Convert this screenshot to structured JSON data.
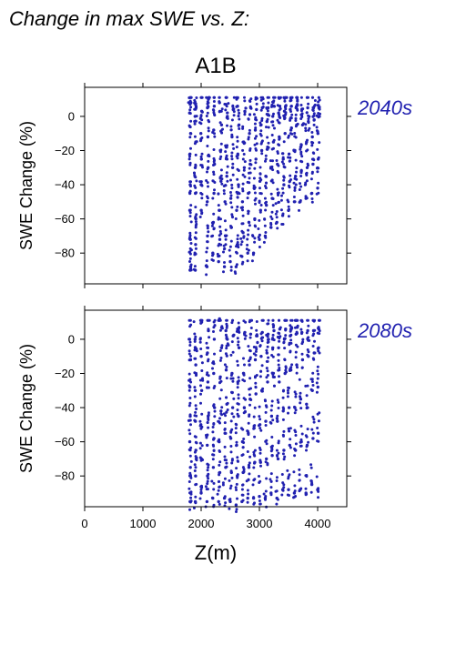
{
  "figure": {
    "title": "Change in max SWE vs. Z:",
    "scenario": "A1B",
    "xlabel": "Z(m)"
  },
  "chart_data": [
    {
      "type": "scatter",
      "panel_label": "2040s",
      "ylabel": "SWE Change (%)",
      "xlabel": "",
      "xlim": [
        0,
        4500
      ],
      "ylim": [
        -98,
        17
      ],
      "xticks": [
        0,
        1000,
        2000,
        3000,
        4000
      ],
      "yticks": [
        0,
        -20,
        -40,
        -60,
        -80
      ],
      "show_xtick_labels": false,
      "color": "#2121b0",
      "x_range_of_points": [
        1800,
        4020
      ],
      "y_envelope_note": "points span roughly -90 to +10 percent; lower bound rises from about -90 at 2700 m to about -40 near 4000 m",
      "points": [
        [
          1810,
          -90
        ],
        [
          1820,
          -88
        ],
        [
          1815,
          -72
        ],
        [
          1805,
          -55
        ],
        [
          1812,
          -40
        ],
        [
          1808,
          -22
        ],
        [
          1818,
          -10
        ],
        [
          1802,
          2
        ],
        [
          1825,
          8
        ],
        [
          1900,
          -90
        ],
        [
          1905,
          -75
        ],
        [
          1910,
          -60
        ],
        [
          1902,
          -45
        ],
        [
          1898,
          -30
        ],
        [
          1908,
          -15
        ],
        [
          1895,
          0
        ],
        [
          1912,
          5
        ],
        [
          2000,
          -40
        ],
        [
          2005,
          -25
        ],
        [
          1995,
          -10
        ],
        [
          2010,
          3
        ],
        [
          2002,
          -55
        ],
        [
          2100,
          -88
        ],
        [
          2110,
          -70
        ],
        [
          2105,
          -50
        ],
        [
          2120,
          -30
        ],
        [
          2115,
          -12
        ],
        [
          2108,
          5
        ],
        [
          2125,
          10
        ],
        [
          2200,
          -80
        ],
        [
          2210,
          -62
        ],
        [
          2220,
          -45
        ],
        [
          2230,
          -28
        ],
        [
          2215,
          -8
        ],
        [
          2225,
          6
        ],
        [
          2300,
          -85
        ],
        [
          2320,
          -72
        ],
        [
          2310,
          -55
        ],
        [
          2340,
          -38
        ],
        [
          2330,
          -20
        ],
        [
          2350,
          -5
        ],
        [
          2315,
          8
        ],
        [
          2400,
          -88
        ],
        [
          2420,
          -70
        ],
        [
          2410,
          -50
        ],
        [
          2440,
          -35
        ],
        [
          2430,
          -18
        ],
        [
          2450,
          0
        ],
        [
          2425,
          7
        ],
        [
          2500,
          -85
        ],
        [
          2520,
          -65
        ],
        [
          2510,
          -48
        ],
        [
          2540,
          -30
        ],
        [
          2530,
          -12
        ],
        [
          2550,
          4
        ],
        [
          2600,
          -88
        ],
        [
          2620,
          -75
        ],
        [
          2610,
          -55
        ],
        [
          2640,
          -40
        ],
        [
          2630,
          -22
        ],
        [
          2650,
          -5
        ],
        [
          2625,
          6
        ],
        [
          2700,
          -82
        ],
        [
          2720,
          -68
        ],
        [
          2710,
          -50
        ],
        [
          2740,
          -30
        ],
        [
          2730,
          -15
        ],
        [
          2750,
          3
        ],
        [
          2800,
          -80
        ],
        [
          2820,
          -62
        ],
        [
          2810,
          -45
        ],
        [
          2840,
          -28
        ],
        [
          2830,
          -10
        ],
        [
          2850,
          5
        ],
        [
          2900,
          -80
        ],
        [
          2920,
          -60
        ],
        [
          2910,
          -42
        ],
        [
          2940,
          -25
        ],
        [
          2930,
          -8
        ],
        [
          2950,
          4
        ],
        [
          3000,
          -72
        ],
        [
          3020,
          -55
        ],
        [
          3010,
          -38
        ],
        [
          3040,
          -20
        ],
        [
          3030,
          -5
        ],
        [
          3050,
          5
        ],
        [
          3100,
          -70
        ],
        [
          3120,
          -52
        ],
        [
          3110,
          -35
        ],
        [
          3140,
          -18
        ],
        [
          3130,
          -3
        ],
        [
          3150,
          5
        ],
        [
          3200,
          -65
        ],
        [
          3220,
          -48
        ],
        [
          3210,
          -30
        ],
        [
          3240,
          -15
        ],
        [
          3230,
          0
        ],
        [
          3250,
          6
        ],
        [
          3300,
          -62
        ],
        [
          3320,
          -45
        ],
        [
          3310,
          -28
        ],
        [
          3340,
          -12
        ],
        [
          3330,
          2
        ],
        [
          3350,
          6
        ],
        [
          3400,
          -58
        ],
        [
          3420,
          -40
        ],
        [
          3410,
          -25
        ],
        [
          3440,
          -10
        ],
        [
          3430,
          3
        ],
        [
          3450,
          6
        ],
        [
          3500,
          -55
        ],
        [
          3520,
          -38
        ],
        [
          3510,
          -22
        ],
        [
          3540,
          -8
        ],
        [
          3530,
          4
        ],
        [
          3550,
          6
        ],
        [
          3600,
          -50
        ],
        [
          3620,
          -35
        ],
        [
          3610,
          -20
        ],
        [
          3640,
          -5
        ],
        [
          3630,
          5
        ],
        [
          3650,
          7
        ],
        [
          3700,
          -50
        ],
        [
          3720,
          -32
        ],
        [
          3710,
          -18
        ],
        [
          3740,
          -5
        ],
        [
          3730,
          4
        ],
        [
          3800,
          -48
        ],
        [
          3820,
          -30
        ],
        [
          3810,
          -15
        ],
        [
          3840,
          -3
        ],
        [
          3830,
          5
        ],
        [
          3900,
          -45
        ],
        [
          3920,
          -28
        ],
        [
          3910,
          -12
        ],
        [
          3940,
          -2
        ],
        [
          3930,
          5
        ],
        [
          4000,
          -42
        ],
        [
          4010,
          -25
        ],
        [
          4005,
          -10
        ],
        [
          4015,
          0
        ],
        [
          4020,
          5
        ]
      ]
    },
    {
      "type": "scatter",
      "panel_label": "2080s",
      "ylabel": "SWE Change (%)",
      "xlabel": "Z(m)",
      "xlim": [
        0,
        4500
      ],
      "ylim": [
        -98,
        17
      ],
      "xticks": [
        0,
        1000,
        2000,
        3000,
        4000
      ],
      "yticks": [
        0,
        -20,
        -40,
        -60,
        -80
      ],
      "show_xtick_labels": true,
      "color": "#2121b0",
      "x_range_of_points": [
        1800,
        4020
      ],
      "y_envelope_note": "points span roughly -95 to +12 percent; lower bound stays near -95 up to about 3300 m then rises to about -88 near 4000 m",
      "points": [
        [
          1810,
          -95
        ],
        [
          1820,
          -90
        ],
        [
          1815,
          -75
        ],
        [
          1805,
          -60
        ],
        [
          1812,
          -45
        ],
        [
          1808,
          -28
        ],
        [
          1818,
          -12
        ],
        [
          1802,
          0
        ],
        [
          1900,
          -95
        ],
        [
          1905,
          -80
        ],
        [
          1910,
          -65
        ],
        [
          1902,
          -48
        ],
        [
          1898,
          -30
        ],
        [
          1908,
          -15
        ],
        [
          1895,
          0
        ],
        [
          2000,
          -90
        ],
        [
          2005,
          -70
        ],
        [
          1995,
          -50
        ],
        [
          2010,
          -30
        ],
        [
          2002,
          -10
        ],
        [
          2008,
          10
        ],
        [
          2100,
          -95
        ],
        [
          2110,
          -80
        ],
        [
          2105,
          -62
        ],
        [
          2120,
          -45
        ],
        [
          2115,
          -25
        ],
        [
          2108,
          -8
        ],
        [
          2125,
          5
        ],
        [
          2200,
          -93
        ],
        [
          2210,
          -75
        ],
        [
          2220,
          -58
        ],
        [
          2230,
          -40
        ],
        [
          2215,
          -20
        ],
        [
          2225,
          0
        ],
        [
          2300,
          -95
        ],
        [
          2320,
          -78
        ],
        [
          2310,
          -60
        ],
        [
          2340,
          -42
        ],
        [
          2330,
          -22
        ],
        [
          2350,
          -5
        ],
        [
          2315,
          12
        ],
        [
          2400,
          -93
        ],
        [
          2420,
          -75
        ],
        [
          2410,
          -55
        ],
        [
          2440,
          -38
        ],
        [
          2430,
          -18
        ],
        [
          2450,
          0
        ],
        [
          2425,
          5
        ],
        [
          2500,
          -95
        ],
        [
          2520,
          -78
        ],
        [
          2510,
          -58
        ],
        [
          2540,
          -40
        ],
        [
          2530,
          -20
        ],
        [
          2550,
          2
        ],
        [
          2600,
          -97
        ],
        [
          2620,
          -80
        ],
        [
          2610,
          -62
        ],
        [
          2640,
          -45
        ],
        [
          2630,
          -25
        ],
        [
          2650,
          -5
        ],
        [
          2625,
          6
        ],
        [
          2700,
          -95
        ],
        [
          2720,
          -78
        ],
        [
          2710,
          -60
        ],
        [
          2740,
          -40
        ],
        [
          2730,
          -20
        ],
        [
          2750,
          4
        ],
        [
          2800,
          -93
        ],
        [
          2820,
          -75
        ],
        [
          2810,
          -55
        ],
        [
          2840,
          -35
        ],
        [
          2830,
          -15
        ],
        [
          2850,
          3
        ],
        [
          2900,
          -93
        ],
        [
          2920,
          -72
        ],
        [
          2910,
          -52
        ],
        [
          2940,
          -32
        ],
        [
          2930,
          -12
        ],
        [
          2950,
          2
        ],
        [
          3000,
          -92
        ],
        [
          3020,
          -72
        ],
        [
          3010,
          -50
        ],
        [
          3040,
          -30
        ],
        [
          3030,
          -10
        ],
        [
          3050,
          4
        ],
        [
          3100,
          -93
        ],
        [
          3120,
          -70
        ],
        [
          3110,
          -48
        ],
        [
          3140,
          -25
        ],
        [
          3130,
          -8
        ],
        [
          3150,
          3
        ],
        [
          3200,
          -90
        ],
        [
          3220,
          -68
        ],
        [
          3210,
          -45
        ],
        [
          3240,
          -22
        ],
        [
          3230,
          -5
        ],
        [
          3250,
          5
        ],
        [
          3300,
          -93
        ],
        [
          3320,
          -70
        ],
        [
          3310,
          -48
        ],
        [
          3340,
          -25
        ],
        [
          3330,
          -5
        ],
        [
          3350,
          6
        ],
        [
          3400,
          -88
        ],
        [
          3420,
          -65
        ],
        [
          3410,
          -42
        ],
        [
          3440,
          -20
        ],
        [
          3430,
          0
        ],
        [
          3450,
          6
        ],
        [
          3500,
          -88
        ],
        [
          3520,
          -62
        ],
        [
          3510,
          -40
        ],
        [
          3540,
          -18
        ],
        [
          3530,
          2
        ],
        [
          3550,
          7
        ],
        [
          3600,
          -90
        ],
        [
          3620,
          -65
        ],
        [
          3610,
          -40
        ],
        [
          3640,
          -15
        ],
        [
          3630,
          3
        ],
        [
          3650,
          7
        ],
        [
          3700,
          -88
        ],
        [
          3720,
          -60
        ],
        [
          3710,
          -35
        ],
        [
          3740,
          -12
        ],
        [
          3730,
          4
        ],
        [
          3800,
          -90
        ],
        [
          3820,
          -62
        ],
        [
          3810,
          -38
        ],
        [
          3840,
          -10
        ],
        [
          3830,
          5
        ],
        [
          3900,
          -85
        ],
        [
          3920,
          -58
        ],
        [
          3910,
          -30
        ],
        [
          3940,
          -8
        ],
        [
          3930,
          5
        ],
        [
          4000,
          -88
        ],
        [
          4010,
          -55
        ],
        [
          4005,
          -28
        ],
        [
          4015,
          -5
        ],
        [
          4020,
          6
        ]
      ]
    }
  ]
}
